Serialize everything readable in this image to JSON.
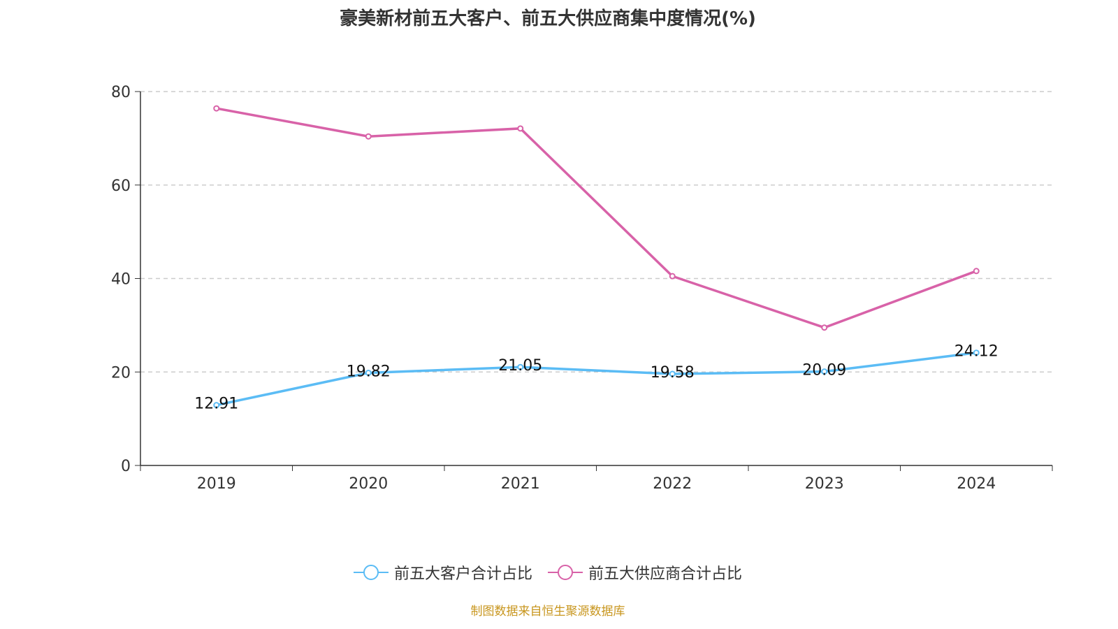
{
  "chart_data": {
    "type": "line",
    "title": "豪美新材前五大客户、前五大供应商集中度情况(%)",
    "categories": [
      "2019",
      "2020",
      "2021",
      "2022",
      "2023",
      "2024"
    ],
    "ylim": [
      0,
      80
    ],
    "yticks": [
      0,
      20,
      40,
      60,
      80
    ],
    "grid": true,
    "legend_position": "bottom",
    "series": [
      {
        "name": "前五大客户合计占比",
        "color": "#5bbcf5",
        "values": [
          12.91,
          19.82,
          21.05,
          19.58,
          20.09,
          24.12
        ],
        "labels": true
      },
      {
        "name": "前五大供应商合计占比",
        "color": "#d862a8",
        "values": [
          76.4,
          70.4,
          72.1,
          40.5,
          29.5,
          41.6
        ],
        "labels": false
      }
    ]
  },
  "source": "制图数据来自恒生聚源数据库"
}
